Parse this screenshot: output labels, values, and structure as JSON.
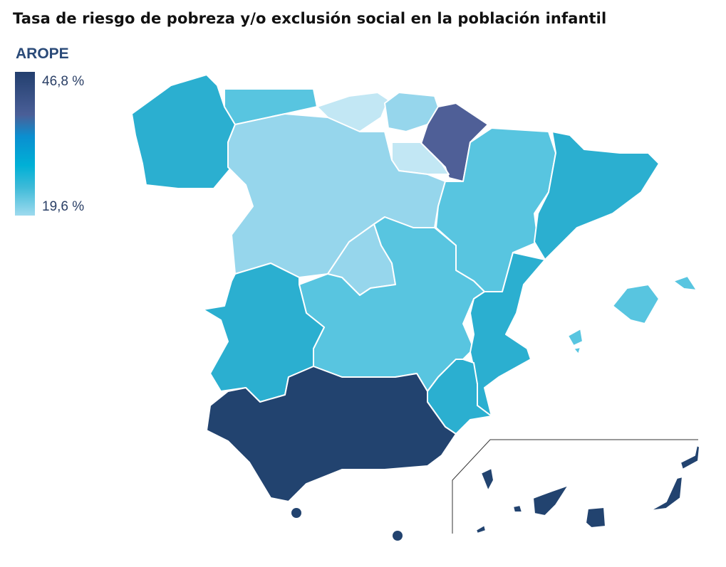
{
  "title": "Tasa de riesgo de pobreza y/o exclusión social en la población infantil",
  "legend": {
    "label": "AROPE",
    "max": "46,8 %",
    "min": "19,6 %",
    "gradient": [
      "#233f6e",
      "#4a5f98",
      "#0a8fd0",
      "#00b0d6",
      "#3cbad8",
      "#9edaee"
    ]
  },
  "colors": {
    "darkest": "#22436f",
    "dark": "#4f5f97",
    "mid": "#2bafd0",
    "medium_light": "#58c5e0",
    "light": "#96d6ec",
    "lightest": "#c2e7f4"
  }
}
